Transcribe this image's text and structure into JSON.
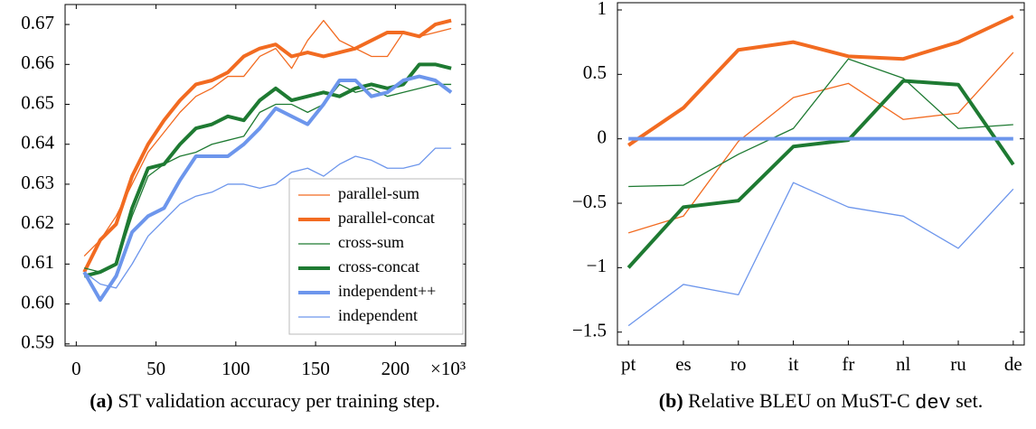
{
  "chart_data": [
    {
      "type": "line",
      "caption": {
        "label": "(a)",
        "text": "ST validation accuracy per training step."
      },
      "xlabel": "×10³",
      "x": [
        5,
        15,
        25,
        35,
        45,
        55,
        65,
        75,
        85,
        95,
        105,
        115,
        125,
        135,
        145,
        155,
        165,
        175,
        185,
        195,
        205,
        215,
        225,
        235
      ],
      "xlim": [
        -7,
        244
      ],
      "xticks": [
        0,
        50,
        100,
        150,
        200
      ],
      "ylim": [
        0.5895,
        0.675
      ],
      "yticks": [
        0.59,
        {
          "value": 0.6,
          "label": "0.60"
        },
        0.61,
        0.62,
        0.63,
        0.64,
        0.65,
        0.66,
        0.67
      ],
      "legend": "lower right",
      "series": [
        {
          "name": "parallel-sum",
          "color": "#f26b21",
          "width": 1.3,
          "values": [
            0.612,
            0.616,
            0.622,
            0.63,
            0.638,
            0.643,
            0.648,
            0.652,
            0.654,
            0.657,
            0.657,
            0.662,
            0.664,
            0.659,
            0.666,
            0.671,
            0.666,
            0.664,
            0.662,
            0.662,
            0.668,
            0.667,
            0.668,
            0.669
          ]
        },
        {
          "name": "parallel-concat",
          "color": "#f26b21",
          "width": 4,
          "values": [
            0.608,
            0.616,
            0.62,
            0.632,
            0.64,
            0.646,
            0.651,
            0.655,
            0.656,
            0.658,
            0.662,
            0.664,
            0.665,
            0.662,
            0.663,
            0.662,
            0.663,
            0.664,
            0.666,
            0.668,
            0.668,
            0.667,
            0.67,
            0.671
          ]
        },
        {
          "name": "cross-sum",
          "color": "#1e7a32",
          "width": 1.3,
          "values": [
            0.609,
            0.608,
            0.61,
            0.622,
            0.632,
            0.635,
            0.637,
            0.638,
            0.64,
            0.641,
            0.642,
            0.648,
            0.65,
            0.65,
            0.648,
            0.65,
            0.655,
            0.653,
            0.654,
            0.652,
            0.653,
            0.654,
            0.655,
            0.655
          ]
        },
        {
          "name": "cross-concat",
          "color": "#1e7a32",
          "width": 4,
          "values": [
            0.607,
            0.608,
            0.61,
            0.624,
            0.634,
            0.635,
            0.64,
            0.644,
            0.645,
            0.647,
            0.646,
            0.651,
            0.654,
            0.651,
            0.652,
            0.653,
            0.652,
            0.654,
            0.655,
            0.654,
            0.655,
            0.66,
            0.66,
            0.659
          ]
        },
        {
          "name": "independent++",
          "color": "#6d96ec",
          "width": 4,
          "values": [
            0.608,
            0.601,
            0.607,
            0.618,
            0.622,
            0.624,
            0.631,
            0.637,
            0.637,
            0.637,
            0.64,
            0.644,
            0.649,
            0.647,
            0.645,
            0.65,
            0.656,
            0.656,
            0.652,
            0.653,
            0.656,
            0.657,
            0.656,
            0.653
          ]
        },
        {
          "name": "independent",
          "color": "#6d96ec",
          "width": 1.3,
          "values": [
            0.608,
            0.605,
            0.604,
            0.61,
            0.617,
            0.621,
            0.625,
            0.627,
            0.628,
            0.63,
            0.63,
            0.629,
            0.63,
            0.633,
            0.634,
            0.632,
            0.635,
            0.637,
            0.636,
            0.634,
            0.634,
            0.635,
            0.639,
            0.639
          ]
        }
      ]
    },
    {
      "type": "line",
      "caption": {
        "label": "(b)",
        "text": "Relative BLEU on MuST-C",
        "code": "dev",
        "text_end": "set."
      },
      "categories": [
        "pt",
        "es",
        "ro",
        "it",
        "fr",
        "nl",
        "ru",
        "de"
      ],
      "ylim": [
        -1.6,
        1.056
      ],
      "yticks": [
        {
          "value": -1.5,
          "label": "−1.5"
        },
        {
          "value": -1,
          "label": "−1"
        },
        {
          "value": -0.5,
          "label": "−0.5"
        },
        0,
        0.5,
        1
      ],
      "series": [
        {
          "color": "#f26b21",
          "width": 1.3,
          "values": [
            -0.73,
            -0.6,
            -0.02,
            0.32,
            0.43,
            0.15,
            0.2,
            0.67
          ]
        },
        {
          "color": "#f26b21",
          "width": 4,
          "values": [
            -0.05,
            0.24,
            0.69,
            0.75,
            0.64,
            0.62,
            0.75,
            0.95
          ]
        },
        {
          "color": "#1e7a32",
          "width": 1.3,
          "values": [
            -0.37,
            -0.36,
            -0.12,
            0.08,
            0.62,
            0.47,
            0.08,
            0.11
          ]
        },
        {
          "color": "#1e7a32",
          "width": 4,
          "values": [
            -1.0,
            -0.53,
            -0.48,
            -0.06,
            -0.01,
            0.45,
            0.42,
            -0.2
          ]
        },
        {
          "color": "#6d96ec",
          "width": 4,
          "values": [
            0,
            0,
            0,
            0,
            0,
            0,
            0,
            0
          ]
        },
        {
          "color": "#6d96ec",
          "width": 1.3,
          "values": [
            -1.45,
            -1.13,
            -1.21,
            -0.34,
            -0.53,
            -0.6,
            -0.85,
            -0.39
          ]
        }
      ]
    }
  ]
}
